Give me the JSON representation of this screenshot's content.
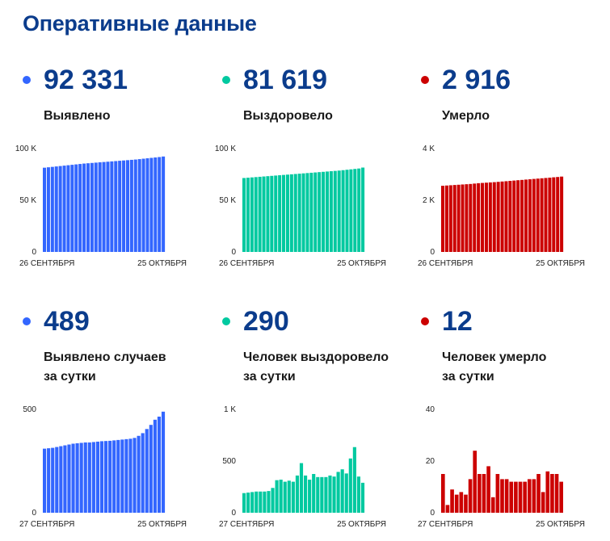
{
  "page": {
    "title": "Оперативные данные"
  },
  "cards": [
    {
      "value": "92 331",
      "label_lines": [
        "Выявлено"
      ],
      "color": "#3366ff",
      "chart_data": {
        "type": "bar",
        "title": "Выявлено",
        "x_start_label": "26 СЕНТЯБРЯ",
        "x_end_label": "25 ОКТЯБРЯ",
        "y_ticks": [
          {
            "value": 0,
            "label": "0"
          },
          {
            "value": 50000,
            "label": "50 K"
          },
          {
            "value": 100000,
            "label": "100 K"
          }
        ],
        "ylim": [
          0,
          100000
        ],
        "values": [
          81500,
          81900,
          82300,
          82700,
          83100,
          83500,
          83900,
          84300,
          84700,
          85100,
          85500,
          85800,
          86100,
          86400,
          86700,
          87000,
          87300,
          87600,
          87900,
          88200,
          88500,
          88800,
          89100,
          89400,
          89800,
          90200,
          90600,
          91000,
          91400,
          91800,
          92331
        ]
      }
    },
    {
      "value": "81 619",
      "label_lines": [
        "Выздоровело"
      ],
      "color": "#00c9a0",
      "chart_data": {
        "type": "bar",
        "title": "Выздоровело",
        "x_start_label": "26 СЕНТЯБРЯ",
        "x_end_label": "25 ОКТЯБРЯ",
        "y_ticks": [
          {
            "value": 0,
            "label": "0"
          },
          {
            "value": 50000,
            "label": "50 K"
          },
          {
            "value": 100000,
            "label": "100 K"
          }
        ],
        "ylim": [
          0,
          100000
        ],
        "values": [
          71500,
          71800,
          72100,
          72400,
          72700,
          73000,
          73300,
          73600,
          73900,
          74200,
          74500,
          74800,
          75100,
          75400,
          75700,
          76000,
          76300,
          76600,
          76900,
          77200,
          77500,
          77800,
          78100,
          78400,
          78700,
          79100,
          79500,
          79900,
          80300,
          80700,
          81619
        ]
      }
    },
    {
      "value": "2 916",
      "label_lines": [
        "Умерло"
      ],
      "color": "#cc0000",
      "chart_data": {
        "type": "bar",
        "title": "Умерло",
        "x_start_label": "26 СЕНТЯБРЯ",
        "x_end_label": "25 ОКТЯБРЯ",
        "y_ticks": [
          {
            "value": 0,
            "label": "0"
          },
          {
            "value": 2000,
            "label": "2 K"
          },
          {
            "value": 4000,
            "label": "4 K"
          }
        ],
        "ylim": [
          0,
          4000
        ],
        "values": [
          2560,
          2570,
          2580,
          2590,
          2600,
          2610,
          2620,
          2630,
          2645,
          2660,
          2670,
          2680,
          2690,
          2700,
          2712,
          2725,
          2737,
          2750,
          2762,
          2775,
          2787,
          2800,
          2812,
          2825,
          2838,
          2850,
          2862,
          2875,
          2888,
          2900,
          2916
        ]
      }
    },
    {
      "value": "489",
      "label_lines": [
        "Выявлено случаев",
        "за сутки"
      ],
      "color": "#3366ff",
      "chart_data": {
        "type": "bar",
        "title": "Выявлено случаев за сутки",
        "x_start_label": "27 СЕНТЯБРЯ",
        "x_end_label": "25 ОКТЯБРЯ",
        "y_ticks": [
          {
            "value": 0,
            "label": "0"
          },
          {
            "value": 500,
            "label": "500"
          }
        ],
        "ylim": [
          0,
          500
        ],
        "values": [
          310,
          312,
          314,
          318,
          322,
          326,
          330,
          334,
          336,
          338,
          340,
          340,
          342,
          344,
          346,
          347,
          348,
          350,
          352,
          354,
          356,
          358,
          362,
          372,
          385,
          405,
          425,
          450,
          465,
          489
        ]
      }
    },
    {
      "value": "290",
      "label_lines": [
        "Человек выздоровело",
        "за сутки"
      ],
      "color": "#00c9a0",
      "chart_data": {
        "type": "bar",
        "title": "Человек выздоровело за сутки",
        "x_start_label": "27 СЕНТЯБРЯ",
        "x_end_label": "25 ОКТЯБРЯ",
        "y_ticks": [
          {
            "value": 0,
            "label": "0"
          },
          {
            "value": 500,
            "label": "500"
          },
          {
            "value": 1000,
            "label": "1 K"
          }
        ],
        "ylim": [
          0,
          1000
        ],
        "values": [
          190,
          195,
          200,
          205,
          205,
          205,
          210,
          240,
          315,
          320,
          300,
          310,
          300,
          360,
          480,
          360,
          320,
          375,
          345,
          345,
          345,
          360,
          350,
          395,
          420,
          380,
          525,
          635,
          350,
          290
        ]
      }
    },
    {
      "value": "12",
      "label_lines": [
        "Человек умерло",
        "за сутки"
      ],
      "color": "#cc0000",
      "chart_data": {
        "type": "bar",
        "title": "Человек умерло за сутки",
        "x_start_label": "27 СЕНТЯБРЯ",
        "x_end_label": "25 ОКТЯБРЯ",
        "y_ticks": [
          {
            "value": 0,
            "label": "0"
          },
          {
            "value": 20,
            "label": "20"
          },
          {
            "value": 40,
            "label": "40"
          }
        ],
        "ylim": [
          0,
          40
        ],
        "values": [
          15,
          3,
          9,
          7,
          8,
          7,
          13,
          24,
          15,
          15,
          18,
          6,
          15,
          13,
          13,
          12,
          12,
          12,
          12,
          13,
          13,
          15,
          8,
          16,
          15,
          15,
          12
        ]
      }
    }
  ]
}
